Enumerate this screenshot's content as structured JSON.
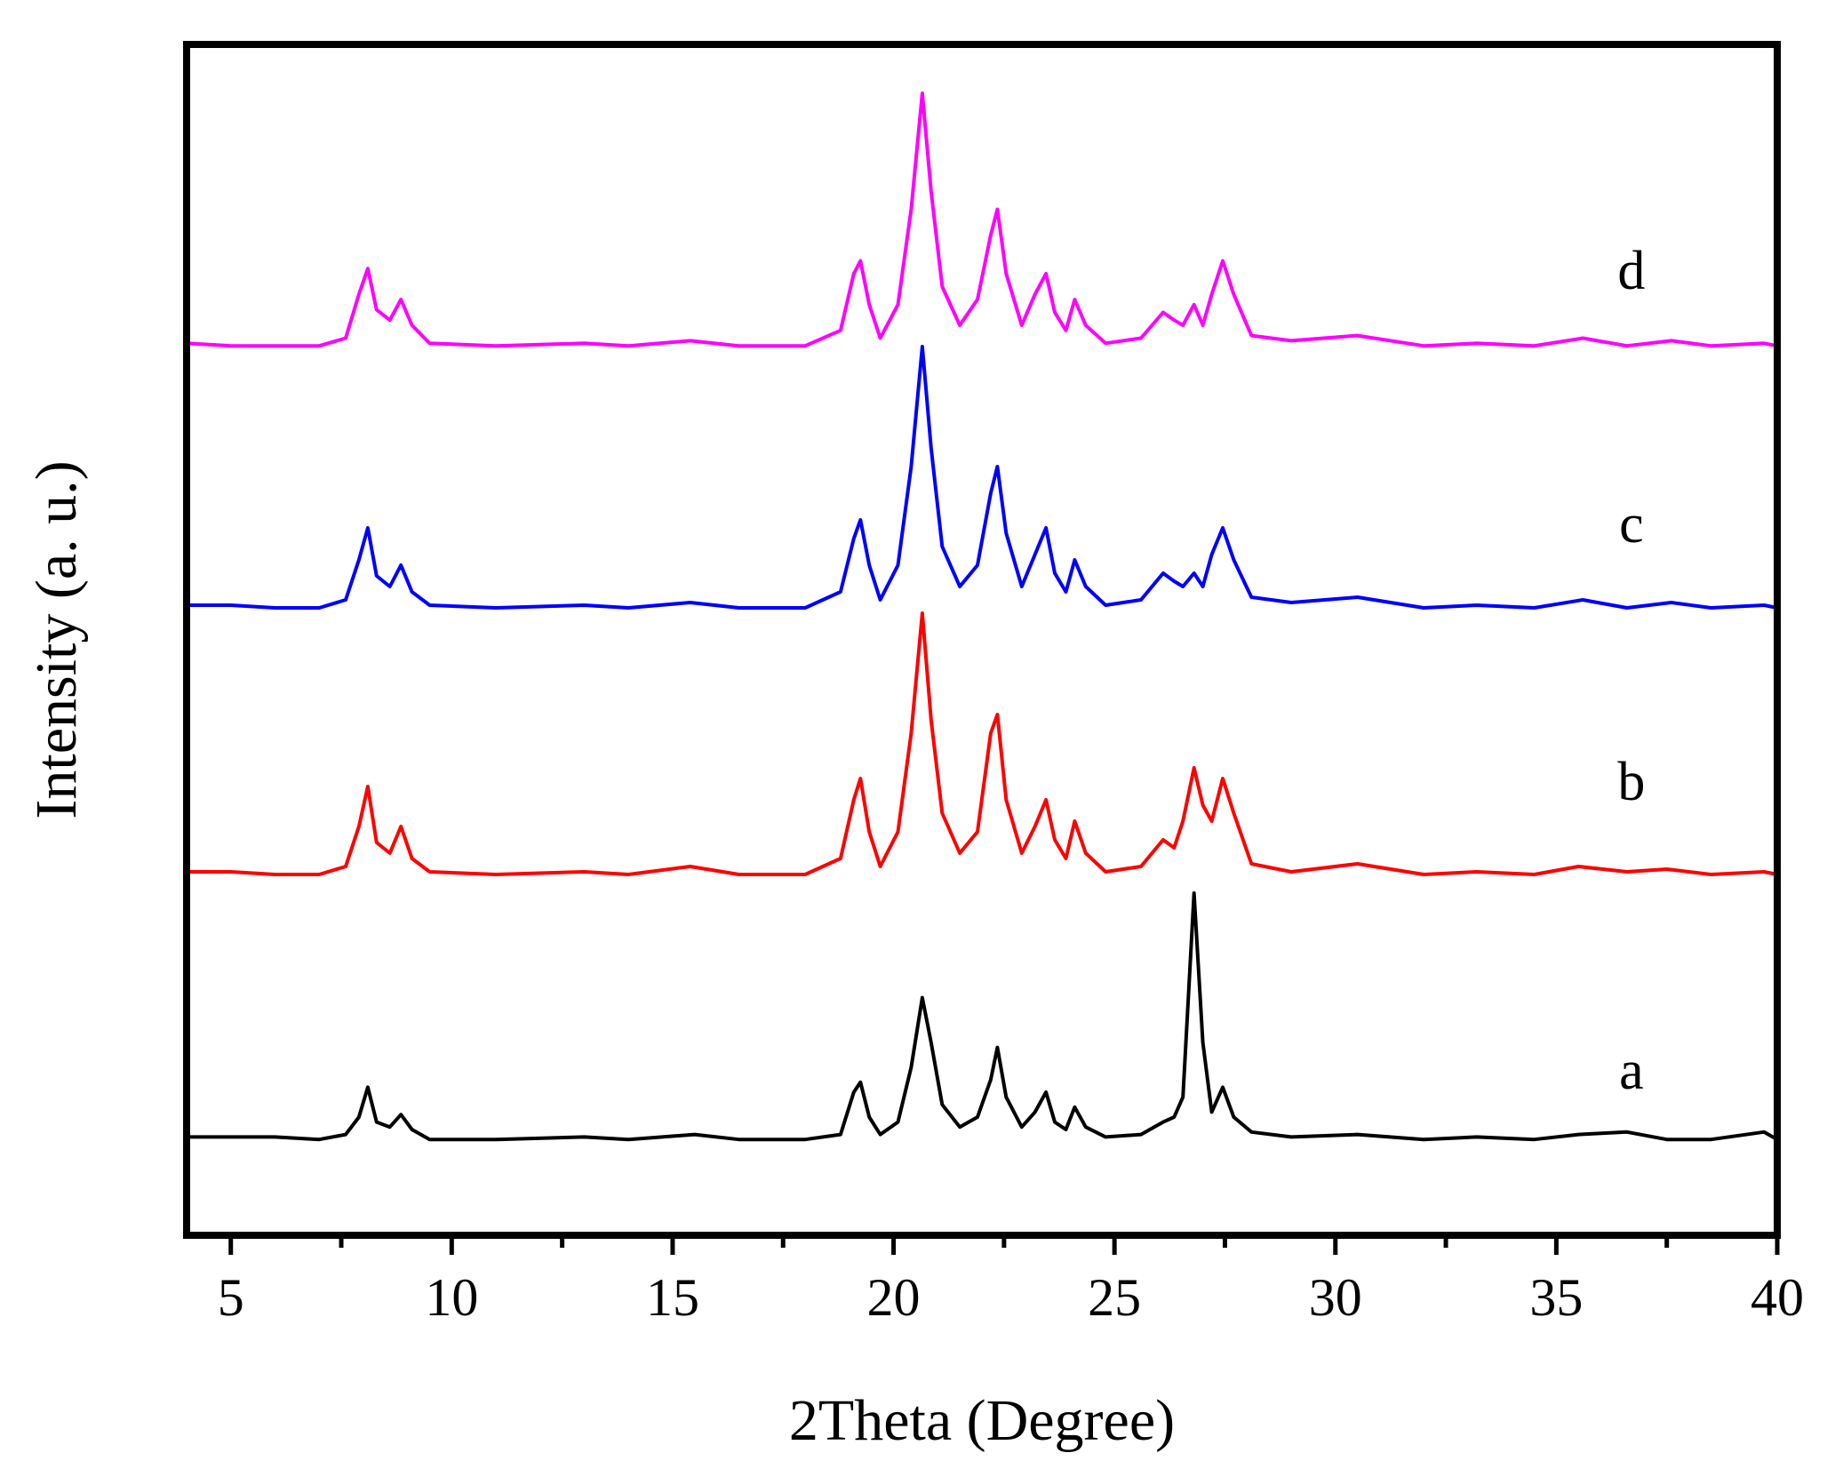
{
  "chart_data": {
    "type": "line",
    "title": "",
    "xlabel": "2Theta (Degree)",
    "ylabel": "Intensity (a. u.)",
    "xlim": [
      4,
      40
    ],
    "x_ticks": [
      "5",
      "10",
      "15",
      "20",
      "25",
      "30",
      "35",
      "40"
    ],
    "y_ticks": [],
    "grid": false,
    "legend": "inline labels at right of each trace",
    "series": [
      {
        "name": "a",
        "color": "#000000",
        "baseline": 0,
        "points": [
          [
            4.0,
            0.02
          ],
          [
            5.0,
            0.02
          ],
          [
            6.0,
            0.02
          ],
          [
            7.0,
            0.01
          ],
          [
            7.6,
            0.03
          ],
          [
            7.9,
            0.1
          ],
          [
            8.1,
            0.22
          ],
          [
            8.3,
            0.08
          ],
          [
            8.6,
            0.06
          ],
          [
            8.85,
            0.11
          ],
          [
            9.1,
            0.05
          ],
          [
            9.5,
            0.01
          ],
          [
            11,
            0.01
          ],
          [
            13,
            0.02
          ],
          [
            14,
            0.01
          ],
          [
            15.5,
            0.03
          ],
          [
            16.5,
            0.01
          ],
          [
            18,
            0.01
          ],
          [
            18.8,
            0.03
          ],
          [
            19.1,
            0.2
          ],
          [
            19.25,
            0.24
          ],
          [
            19.45,
            0.1
          ],
          [
            19.7,
            0.03
          ],
          [
            20.1,
            0.08
          ],
          [
            20.4,
            0.3
          ],
          [
            20.65,
            0.58
          ],
          [
            20.85,
            0.4
          ],
          [
            21.1,
            0.15
          ],
          [
            21.5,
            0.06
          ],
          [
            21.9,
            0.1
          ],
          [
            22.2,
            0.25
          ],
          [
            22.35,
            0.38
          ],
          [
            22.55,
            0.18
          ],
          [
            22.9,
            0.06
          ],
          [
            23.2,
            0.12
          ],
          [
            23.45,
            0.2
          ],
          [
            23.65,
            0.08
          ],
          [
            23.9,
            0.05
          ],
          [
            24.1,
            0.14
          ],
          [
            24.35,
            0.06
          ],
          [
            24.8,
            0.02
          ],
          [
            25.6,
            0.03
          ],
          [
            26.1,
            0.08
          ],
          [
            26.35,
            0.1
          ],
          [
            26.55,
            0.18
          ],
          [
            26.8,
            1.0
          ],
          [
            27.0,
            0.4
          ],
          [
            27.2,
            0.12
          ],
          [
            27.45,
            0.22
          ],
          [
            27.7,
            0.1
          ],
          [
            28.1,
            0.04
          ],
          [
            29,
            0.02
          ],
          [
            30.5,
            0.03
          ],
          [
            32,
            0.01
          ],
          [
            33.2,
            0.02
          ],
          [
            34.5,
            0.01
          ],
          [
            35.5,
            0.03
          ],
          [
            36.6,
            0.04
          ],
          [
            37.5,
            0.01
          ],
          [
            38.5,
            0.01
          ],
          [
            39.7,
            0.04
          ],
          [
            40,
            0.01
          ]
        ]
      },
      {
        "name": "b",
        "color": "#ff0000",
        "baseline": 1,
        "points": [
          [
            4.0,
            0.03
          ],
          [
            5.0,
            0.03
          ],
          [
            6.0,
            0.02
          ],
          [
            7.0,
            0.02
          ],
          [
            7.6,
            0.05
          ],
          [
            7.9,
            0.2
          ],
          [
            8.1,
            0.35
          ],
          [
            8.3,
            0.14
          ],
          [
            8.6,
            0.1
          ],
          [
            8.85,
            0.2
          ],
          [
            9.1,
            0.08
          ],
          [
            9.5,
            0.03
          ],
          [
            11,
            0.02
          ],
          [
            13,
            0.03
          ],
          [
            14,
            0.02
          ],
          [
            15.4,
            0.05
          ],
          [
            16.5,
            0.02
          ],
          [
            18,
            0.02
          ],
          [
            18.8,
            0.08
          ],
          [
            19.1,
            0.3
          ],
          [
            19.25,
            0.38
          ],
          [
            19.45,
            0.18
          ],
          [
            19.7,
            0.05
          ],
          [
            20.1,
            0.18
          ],
          [
            20.4,
            0.55
          ],
          [
            20.65,
            1.0
          ],
          [
            20.85,
            0.6
          ],
          [
            21.1,
            0.25
          ],
          [
            21.5,
            0.1
          ],
          [
            21.9,
            0.18
          ],
          [
            22.2,
            0.55
          ],
          [
            22.35,
            0.62
          ],
          [
            22.55,
            0.3
          ],
          [
            22.9,
            0.1
          ],
          [
            23.2,
            0.2
          ],
          [
            23.45,
            0.3
          ],
          [
            23.65,
            0.15
          ],
          [
            23.9,
            0.08
          ],
          [
            24.1,
            0.22
          ],
          [
            24.35,
            0.1
          ],
          [
            24.8,
            0.03
          ],
          [
            25.6,
            0.05
          ],
          [
            26.1,
            0.15
          ],
          [
            26.35,
            0.12
          ],
          [
            26.55,
            0.22
          ],
          [
            26.8,
            0.42
          ],
          [
            27.0,
            0.28
          ],
          [
            27.2,
            0.22
          ],
          [
            27.45,
            0.38
          ],
          [
            27.7,
            0.25
          ],
          [
            28.1,
            0.06
          ],
          [
            29,
            0.03
          ],
          [
            30.5,
            0.06
          ],
          [
            32,
            0.02
          ],
          [
            33.2,
            0.03
          ],
          [
            34.5,
            0.02
          ],
          [
            35.5,
            0.05
          ],
          [
            36.6,
            0.03
          ],
          [
            37.5,
            0.04
          ],
          [
            38.5,
            0.02
          ],
          [
            39.7,
            0.03
          ],
          [
            40,
            0.02
          ]
        ]
      },
      {
        "name": "c",
        "color": "#0000ff",
        "baseline": 2,
        "points": [
          [
            4.0,
            0.03
          ],
          [
            5.0,
            0.03
          ],
          [
            6.0,
            0.02
          ],
          [
            7.0,
            0.02
          ],
          [
            7.6,
            0.05
          ],
          [
            7.9,
            0.2
          ],
          [
            8.1,
            0.32
          ],
          [
            8.3,
            0.14
          ],
          [
            8.6,
            0.1
          ],
          [
            8.85,
            0.18
          ],
          [
            9.1,
            0.08
          ],
          [
            9.5,
            0.03
          ],
          [
            11,
            0.02
          ],
          [
            13,
            0.03
          ],
          [
            14,
            0.02
          ],
          [
            15.4,
            0.04
          ],
          [
            16.5,
            0.02
          ],
          [
            18,
            0.02
          ],
          [
            18.8,
            0.08
          ],
          [
            19.1,
            0.28
          ],
          [
            19.25,
            0.35
          ],
          [
            19.45,
            0.18
          ],
          [
            19.7,
            0.05
          ],
          [
            20.1,
            0.18
          ],
          [
            20.4,
            0.55
          ],
          [
            20.65,
            1.0
          ],
          [
            20.85,
            0.62
          ],
          [
            21.1,
            0.25
          ],
          [
            21.5,
            0.1
          ],
          [
            21.9,
            0.18
          ],
          [
            22.2,
            0.45
          ],
          [
            22.35,
            0.55
          ],
          [
            22.55,
            0.3
          ],
          [
            22.9,
            0.1
          ],
          [
            23.2,
            0.22
          ],
          [
            23.45,
            0.32
          ],
          [
            23.65,
            0.15
          ],
          [
            23.9,
            0.08
          ],
          [
            24.1,
            0.2
          ],
          [
            24.35,
            0.1
          ],
          [
            24.8,
            0.03
          ],
          [
            25.6,
            0.05
          ],
          [
            26.1,
            0.15
          ],
          [
            26.35,
            0.12
          ],
          [
            26.55,
            0.1
          ],
          [
            26.8,
            0.15
          ],
          [
            27.0,
            0.1
          ],
          [
            27.2,
            0.22
          ],
          [
            27.45,
            0.32
          ],
          [
            27.7,
            0.2
          ],
          [
            28.1,
            0.06
          ],
          [
            29,
            0.04
          ],
          [
            30.5,
            0.06
          ],
          [
            32,
            0.02
          ],
          [
            33.2,
            0.03
          ],
          [
            34.5,
            0.02
          ],
          [
            35.6,
            0.05
          ],
          [
            36.6,
            0.02
          ],
          [
            37.6,
            0.04
          ],
          [
            38.5,
            0.02
          ],
          [
            39.7,
            0.03
          ],
          [
            40,
            0.02
          ]
        ]
      },
      {
        "name": "d",
        "color": "#ff00ff",
        "baseline": 3,
        "points": [
          [
            4.0,
            0.03
          ],
          [
            5.0,
            0.02
          ],
          [
            6.0,
            0.02
          ],
          [
            7.0,
            0.02
          ],
          [
            7.6,
            0.05
          ],
          [
            7.9,
            0.22
          ],
          [
            8.1,
            0.32
          ],
          [
            8.3,
            0.16
          ],
          [
            8.6,
            0.12
          ],
          [
            8.85,
            0.2
          ],
          [
            9.1,
            0.1
          ],
          [
            9.5,
            0.03
          ],
          [
            11,
            0.02
          ],
          [
            13,
            0.03
          ],
          [
            14,
            0.02
          ],
          [
            15.4,
            0.04
          ],
          [
            16.5,
            0.02
          ],
          [
            18,
            0.02
          ],
          [
            18.8,
            0.08
          ],
          [
            19.1,
            0.3
          ],
          [
            19.25,
            0.35
          ],
          [
            19.45,
            0.18
          ],
          [
            19.7,
            0.05
          ],
          [
            20.1,
            0.18
          ],
          [
            20.4,
            0.55
          ],
          [
            20.65,
            1.0
          ],
          [
            20.85,
            0.62
          ],
          [
            21.1,
            0.25
          ],
          [
            21.5,
            0.1
          ],
          [
            21.9,
            0.2
          ],
          [
            22.2,
            0.45
          ],
          [
            22.35,
            0.55
          ],
          [
            22.55,
            0.3
          ],
          [
            22.9,
            0.1
          ],
          [
            23.2,
            0.22
          ],
          [
            23.45,
            0.3
          ],
          [
            23.65,
            0.15
          ],
          [
            23.9,
            0.08
          ],
          [
            24.1,
            0.2
          ],
          [
            24.35,
            0.1
          ],
          [
            24.8,
            0.03
          ],
          [
            25.6,
            0.05
          ],
          [
            26.1,
            0.15
          ],
          [
            26.35,
            0.12
          ],
          [
            26.55,
            0.1
          ],
          [
            26.8,
            0.18
          ],
          [
            27.0,
            0.1
          ],
          [
            27.2,
            0.22
          ],
          [
            27.45,
            0.35
          ],
          [
            27.7,
            0.22
          ],
          [
            28.1,
            0.06
          ],
          [
            29,
            0.04
          ],
          [
            30.5,
            0.06
          ],
          [
            32,
            0.02
          ],
          [
            33.2,
            0.03
          ],
          [
            34.5,
            0.02
          ],
          [
            35.6,
            0.05
          ],
          [
            36.6,
            0.02
          ],
          [
            37.6,
            0.04
          ],
          [
            38.5,
            0.02
          ],
          [
            39.7,
            0.03
          ],
          [
            40,
            0.02
          ]
        ]
      }
    ]
  }
}
